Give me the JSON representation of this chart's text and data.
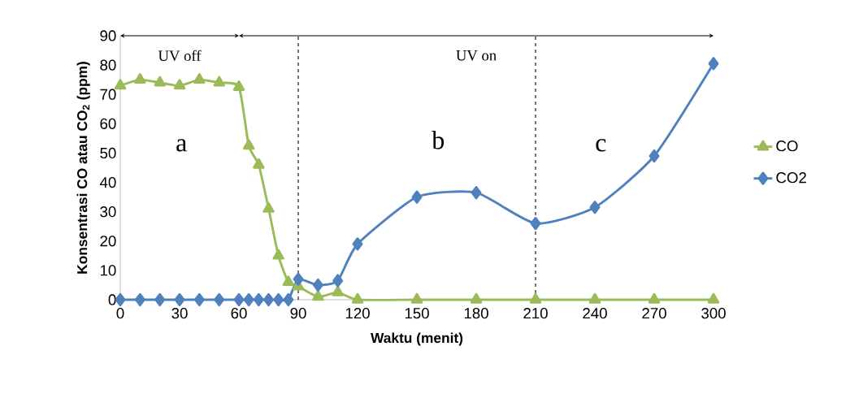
{
  "chart_data": {
    "type": "line",
    "xlabel": "Waktu (menit)",
    "ylabel": "Konsentrasi CO atau CO$_{2}$ (ppm)",
    "xlim": [
      0,
      300
    ],
    "ylim": [
      0,
      90
    ],
    "xticks": [
      0,
      30,
      60,
      90,
      120,
      150,
      180,
      210,
      240,
      270,
      300
    ],
    "yticks": [
      0,
      10,
      20,
      30,
      40,
      50,
      60,
      70,
      80,
      90
    ],
    "grid": false,
    "legend": "right",
    "series": [
      {
        "name": "CO",
        "color": "#9bbb59",
        "marker": "triangle",
        "x": [
          0,
          10,
          20,
          30,
          40,
          50,
          60,
          65,
          70,
          75,
          80,
          85,
          90,
          100,
          110,
          120,
          150,
          180,
          210,
          240,
          270,
          300
        ],
        "values": [
          73,
          75,
          74,
          73,
          75,
          74,
          72.5,
          52.5,
          46,
          31,
          15,
          6,
          4.5,
          1,
          2.5,
          0,
          0,
          0,
          0,
          0,
          0,
          0
        ]
      },
      {
        "name": "CO2",
        "color": "#4f81bd",
        "marker": "diamond",
        "x": [
          0,
          10,
          20,
          30,
          40,
          50,
          60,
          65,
          70,
          75,
          80,
          85,
          90,
          100,
          110,
          120,
          150,
          180,
          210,
          240,
          270,
          300
        ],
        "values": [
          0,
          0,
          0,
          0,
          0,
          0,
          0,
          0,
          0,
          0,
          0,
          0,
          7,
          5,
          6.5,
          19,
          35,
          36.5,
          26,
          31.5,
          49,
          80.5
        ]
      }
    ],
    "ref_lines": [
      {
        "axis": "x",
        "value": 90,
        "line_style": "dashed",
        "color": "#000000"
      },
      {
        "axis": "x",
        "value": 210,
        "line_style": "dashed",
        "color": "#000000"
      }
    ],
    "annotations": [
      "UV off",
      "UV on",
      "a",
      "b",
      "c"
    ]
  }
}
